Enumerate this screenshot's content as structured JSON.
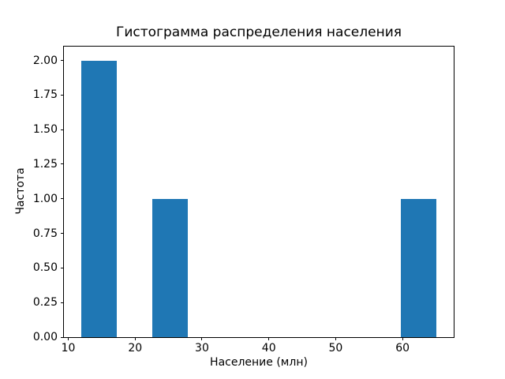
{
  "figure": {
    "background": "#ffffff",
    "spine_color": "#000000",
    "text_color": "#000000"
  },
  "chart_data": {
    "type": "bar",
    "subtype": "histogram",
    "title": "Гистограмма распределения населения",
    "xlabel": "Население (млн)",
    "ylabel": "Частота",
    "bar_color": "#1f77b4",
    "grid": false,
    "legend": false,
    "xlim": [
      9.35,
      67.65
    ],
    "ylim": [
      0,
      2.1
    ],
    "xticks": [
      10,
      20,
      30,
      40,
      50,
      60
    ],
    "yticks": [
      0,
      0.25,
      0.5,
      0.75,
      1,
      1.25,
      1.5,
      1.75,
      2
    ],
    "ytick_labels": [
      "0.00",
      "0.25",
      "0.50",
      "0.75",
      "1.00",
      "1.25",
      "1.50",
      "1.75",
      "2.00"
    ],
    "bin_edges": [
      12.0,
      17.3,
      22.6,
      27.9,
      33.2,
      38.5,
      43.8,
      49.1,
      54.4,
      59.7,
      65.0
    ],
    "counts": [
      2,
      0,
      1,
      0,
      0,
      0,
      0,
      0,
      0,
      1
    ]
  }
}
